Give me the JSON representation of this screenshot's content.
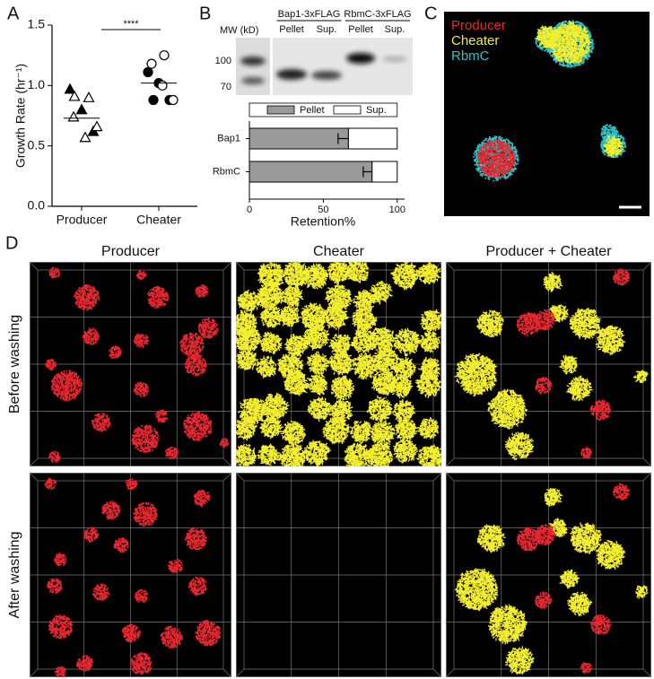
{
  "panel_labels": [
    "A",
    "B",
    "C",
    "D"
  ],
  "chart_data": [
    {
      "type": "scatter",
      "y_label": "Growth Rate (hr⁻¹)",
      "categories": [
        "Producer",
        "Cheater"
      ],
      "groups": [
        {
          "marker": "triangle",
          "filled": [
            0.97,
            0.8,
            0.62
          ],
          "open": [
            0.91,
            0.9,
            0.74,
            0.57,
            0.66
          ]
        },
        {
          "marker": "circle",
          "filled": [
            1.11,
            1.02,
            0.88,
            0.88
          ],
          "open": [
            1.25,
            1.18,
            1.0,
            0.88
          ]
        }
      ],
      "means": [
        0.73,
        1.02
      ],
      "ylim": [
        0,
        1.5
      ],
      "yticks": [
        {
          "value": 0,
          "label": "0.0"
        },
        0.5,
        {
          "value": 1,
          "label": "1.0"
        },
        1.5
      ],
      "annotation": "****"
    },
    {
      "type": "bar",
      "orientation": "horizontal",
      "stacked": true,
      "x_label": "Retention%",
      "categories": [
        "Bap1",
        "RbmC"
      ],
      "series": [
        {
          "name": "Pellet",
          "color": "#9a9a9a",
          "values": [
            67,
            83
          ],
          "errors": [
            7,
            6
          ]
        },
        {
          "name": "Sup.",
          "color": "#ffffff",
          "values": [
            33,
            17
          ]
        }
      ],
      "xlim": [
        0,
        105
      ],
      "xticks": [
        0,
        50,
        100
      ]
    }
  ],
  "blot": {
    "mw_label": "MW (kD)",
    "mw_markers": [
      "100",
      "70"
    ],
    "groups": [
      {
        "label": "Bap1-3xFLAG",
        "lanes": [
          "Pellet",
          "Sup."
        ]
      },
      {
        "label": "RbmC-3xFLAG",
        "lanes": [
          "Pellet",
          "Sup."
        ]
      }
    ]
  },
  "microscopy": {
    "channels": [
      {
        "name": "Producer",
        "color": "#e8262f"
      },
      {
        "name": "Cheater",
        "color": "#f3ee2f"
      },
      {
        "name": "RbmC",
        "color": "#2bc4c9"
      }
    ]
  },
  "panel_d": {
    "columns": [
      "Producer",
      "Cheater",
      "Producer + Cheater"
    ],
    "rows": [
      "Before washing",
      "After washing"
    ]
  }
}
